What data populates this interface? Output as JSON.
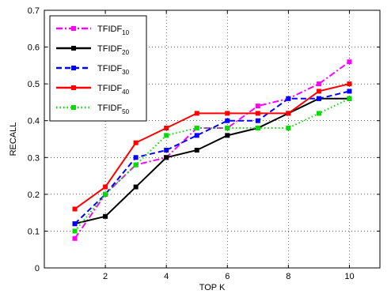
{
  "chart_data": {
    "type": "line",
    "xlabel": "TOP K",
    "ylabel": "RECALL",
    "xlim": [
      0,
      11
    ],
    "ylim": [
      0,
      0.7
    ],
    "xticks": [
      2,
      4,
      6,
      8,
      10
    ],
    "yticks": [
      0,
      0.1,
      0.2,
      0.3,
      0.4,
      0.5,
      0.6,
      0.7
    ],
    "xtick_labels": [
      "2",
      "4",
      "6",
      "8",
      "10"
    ],
    "ytick_labels": [
      "0",
      "0.1",
      "0.2",
      "0.3",
      "0.4",
      "0.5",
      "0.6",
      "0.7"
    ],
    "grid": true,
    "legend_position": "top-left",
    "x": [
      1,
      2,
      3,
      4,
      5,
      6,
      7,
      8,
      9,
      10
    ],
    "series": [
      {
        "name": "TFIDF",
        "subscript": "10",
        "color": "#ff00ff",
        "line_style": "dash-dot",
        "marker": "square",
        "values": [
          0.08,
          0.2,
          0.28,
          0.3,
          0.38,
          0.38,
          0.44,
          0.46,
          0.5,
          0.56
        ]
      },
      {
        "name": "TFIDF",
        "subscript": "20",
        "color": "#000000",
        "line_style": "solid",
        "marker": "square",
        "values": [
          0.12,
          0.14,
          0.22,
          0.3,
          0.32,
          0.36,
          0.38,
          0.42,
          0.46,
          0.46
        ]
      },
      {
        "name": "TFIDF",
        "subscript": "30",
        "color": "#0000ff",
        "line_style": "dashed",
        "marker": "square",
        "values": [
          0.12,
          0.2,
          0.3,
          0.32,
          0.36,
          0.4,
          0.4,
          0.46,
          0.46,
          0.48
        ]
      },
      {
        "name": "TFIDF",
        "subscript": "40",
        "color": "#ff0000",
        "line_style": "solid",
        "marker": "square",
        "values": [
          0.16,
          0.22,
          0.34,
          0.38,
          0.42,
          0.42,
          0.42,
          0.42,
          0.48,
          0.5
        ]
      },
      {
        "name": "TFIDF",
        "subscript": "50",
        "color": "#00dd00",
        "line_style": "dotted",
        "marker": "square",
        "values": [
          0.1,
          0.2,
          0.28,
          0.36,
          0.38,
          0.38,
          0.38,
          0.38,
          0.42,
          0.46
        ]
      }
    ]
  }
}
